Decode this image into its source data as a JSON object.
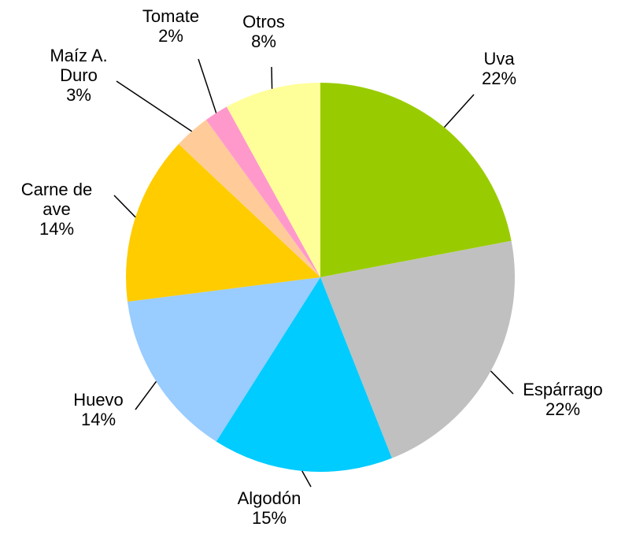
{
  "chart_data": {
    "type": "pie",
    "categories": [
      "Uva",
      "Espárrago",
      "Algodón",
      "Huevo",
      "Carne de ave",
      "Maíz A. Duro",
      "Tomate",
      "Otros"
    ],
    "values": [
      22,
      22,
      15,
      14,
      14,
      3,
      2,
      8
    ],
    "value_labels": [
      "22%",
      "22%",
      "15%",
      "14%",
      "14%",
      "3%",
      "2%",
      "8%"
    ],
    "colors": [
      "#99cc00",
      "#c0c0c0",
      "#00ccff",
      "#99ccff",
      "#ffcc00",
      "#ffcc99",
      "#ff99cc",
      "#ffff99"
    ]
  }
}
